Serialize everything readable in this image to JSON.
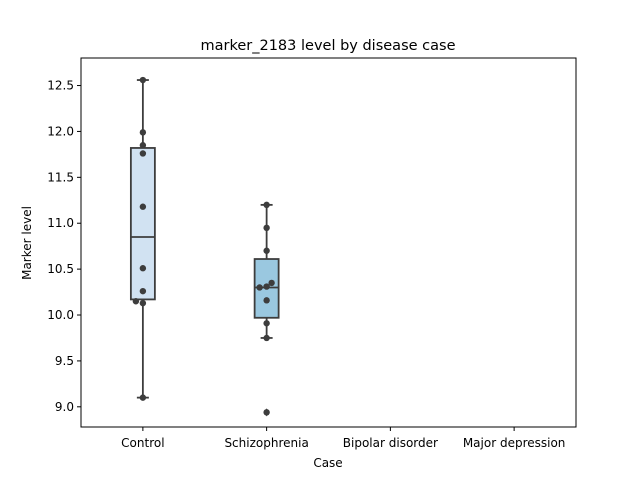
{
  "chart_data": {
    "type": "box",
    "title": "marker_2183 level by disease case",
    "xlabel": "Case",
    "ylabel": "Marker level",
    "categories": [
      "Control",
      "Schizophrenia",
      "Bipolar disorder",
      "Major depression"
    ],
    "ylim": [
      8.78,
      12.8
    ],
    "yticks": [
      9.0,
      9.5,
      10.0,
      10.5,
      11.0,
      11.5,
      12.0,
      12.5
    ],
    "ytick_labels": [
      "9.0",
      "9.5",
      "10.0",
      "10.5",
      "11.0",
      "11.5",
      "12.0",
      "12.5"
    ],
    "grid": false,
    "boxes": [
      {
        "category": "Control",
        "whisker_low": 9.1,
        "q1": 10.17,
        "median": 10.85,
        "q3": 11.82,
        "whisker_high": 12.56,
        "outliers": [],
        "points": [
          12.56,
          11.99,
          11.85,
          11.76,
          11.18,
          10.51,
          10.26,
          10.15,
          10.13,
          9.1
        ],
        "color": "#d1e2f2"
      },
      {
        "category": "Schizophrenia",
        "whisker_low": 9.75,
        "q1": 9.97,
        "median": 10.3,
        "q3": 10.61,
        "whisker_high": 11.2,
        "outliers": [
          8.94
        ],
        "points": [
          11.2,
          10.95,
          10.7,
          10.35,
          10.31,
          10.3,
          10.16,
          9.91,
          9.75,
          8.94
        ],
        "color": "#9ac8e0"
      },
      {
        "category": "Bipolar disorder",
        "points": []
      },
      {
        "category": "Major depression",
        "points": []
      }
    ],
    "colors": {
      "line": "#3d3d3d",
      "point": "#3d3d3d",
      "frame": "#000000"
    }
  }
}
